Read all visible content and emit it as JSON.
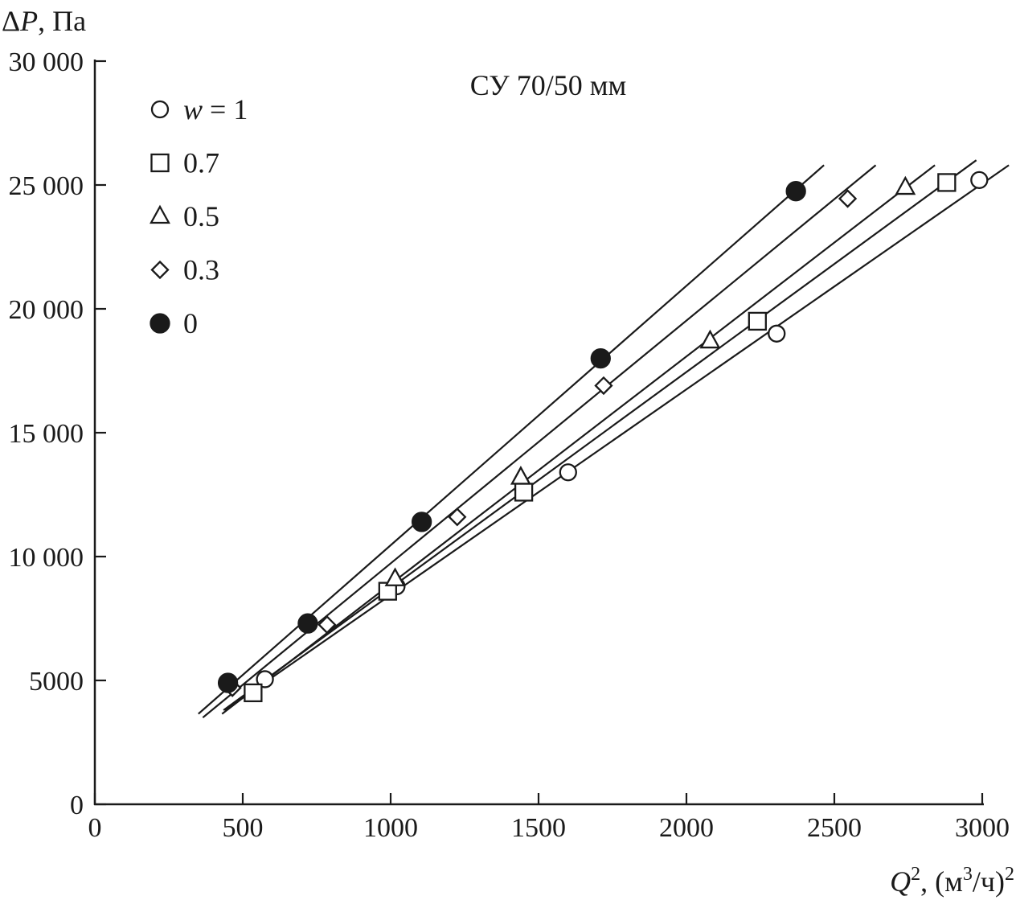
{
  "chart_data": {
    "type": "scatter",
    "title": "СУ 70/50 мм",
    "xlabel": {
      "var": "Q",
      "sup": "2",
      "rest": ", (м",
      "sup2": "3",
      "rest2": "/ч)",
      "sup3": "2"
    },
    "ylabel": {
      "delta": "Δ",
      "var": "P",
      "rest": ", Па"
    },
    "xlim": [
      0,
      3000
    ],
    "ylim": [
      0,
      30000
    ],
    "xticks": [
      0,
      500,
      1000,
      1500,
      2000,
      2500,
      3000
    ],
    "xtick_labels": [
      "0",
      "500",
      "1000",
      "1500",
      "2000",
      "2500",
      "3000"
    ],
    "yticks": [
      0,
      5000,
      10000,
      15000,
      20000,
      25000,
      30000
    ],
    "ytick_labels": [
      "0",
      "5000",
      "10 000",
      "15 000",
      "20 000",
      "25 000",
      "30 000"
    ],
    "grid": false,
    "legend_position": "top-left",
    "legend_prefix": {
      "var": "w",
      "eq": " = "
    },
    "series": [
      {
        "name": "1",
        "marker": "circle-open",
        "points": [
          [
            575,
            5050
          ],
          [
            1020,
            8800
          ],
          [
            1600,
            13400
          ],
          [
            2305,
            19000
          ],
          [
            2990,
            25200
          ]
        ],
        "fit": [
          [
            440,
            3800
          ],
          [
            3090,
            25800
          ]
        ]
      },
      {
        "name": "0.7",
        "marker": "square-open",
        "points": [
          [
            535,
            4500
          ],
          [
            990,
            8600
          ],
          [
            1450,
            12600
          ],
          [
            2240,
            19500
          ],
          [
            2880,
            25100
          ]
        ],
        "fit": [
          [
            435,
            3800
          ],
          [
            2980,
            26000
          ]
        ]
      },
      {
        "name": "0.5",
        "marker": "triangle-open",
        "points": [
          [
            1015,
            9100
          ],
          [
            1440,
            13200
          ],
          [
            2080,
            18700
          ],
          [
            2740,
            24900
          ]
        ],
        "fit": [
          [
            430,
            3650
          ],
          [
            2840,
            25800
          ]
        ]
      },
      {
        "name": "0.3",
        "marker": "diamond-open",
        "points": [
          [
            465,
            4700
          ],
          [
            785,
            7250
          ],
          [
            1225,
            11600
          ],
          [
            1720,
            16900
          ],
          [
            2545,
            24450
          ]
        ],
        "fit": [
          [
            365,
            3500
          ],
          [
            2640,
            25800
          ]
        ]
      },
      {
        "name": "0",
        "marker": "circle-filled",
        "points": [
          [
            450,
            4900
          ],
          [
            720,
            7300
          ],
          [
            1105,
            11400
          ],
          [
            1710,
            18000
          ],
          [
            2370,
            24750
          ]
        ],
        "fit": [
          [
            350,
            3650
          ],
          [
            2465,
            25800
          ]
        ]
      }
    ]
  }
}
